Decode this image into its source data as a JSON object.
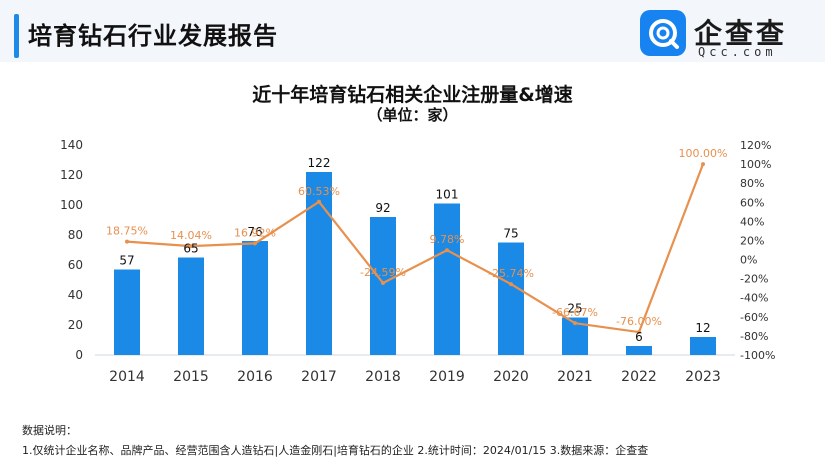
{
  "header": {
    "title": "培育钻石行业发展报告"
  },
  "logo": {
    "name": "企查查",
    "domain": "Qcc.com",
    "brand_color": "#1683f0"
  },
  "chart_data": {
    "type": "bar+line",
    "title": "近十年培育钻石相关企业注册量&增速",
    "subtitle": "（单位：家）",
    "categories": [
      "2014",
      "2015",
      "2016",
      "2017",
      "2018",
      "2019",
      "2020",
      "2021",
      "2022",
      "2023"
    ],
    "series": [
      {
        "name": "注册量",
        "type": "bar",
        "axis": "left",
        "color": "#1a8ae6",
        "values": [
          57,
          65,
          76,
          122,
          92,
          101,
          75,
          25,
          6,
          12
        ],
        "labels": [
          "57",
          "65",
          "76",
          "122",
          "92",
          "101",
          "75",
          "25",
          "6",
          "12"
        ]
      },
      {
        "name": "增速",
        "type": "line",
        "axis": "right",
        "color": "#e8904d",
        "values": [
          18.75,
          14.04,
          16.92,
          60.53,
          -24.59,
          9.78,
          -25.74,
          -66.67,
          -76.0,
          100.0
        ],
        "labels": [
          "18.75%",
          "14.04%",
          "16.92%",
          "60.53%",
          "-24.59%",
          "9.78%",
          "-25.74%",
          "-66.67%",
          "-76.00%",
          "100.00%"
        ]
      }
    ],
    "left_axis": {
      "min": 0,
      "max": 140,
      "ticks": [
        "0",
        "20",
        "40",
        "60",
        "80",
        "100",
        "120",
        "140"
      ]
    },
    "right_axis": {
      "min": -100,
      "max": 120,
      "ticks": [
        "-100%",
        "-80%",
        "-60%",
        "-40%",
        "-20%",
        "0%",
        "20%",
        "40%",
        "60%",
        "80%",
        "100%",
        "120%"
      ]
    }
  },
  "notes": {
    "heading": "数据说明：",
    "line1": "1.仅统计企业名称、品牌产品、经营范围含人造钻石|人造金刚石|培育钻石的企业    2.统计时间：2024/01/15    3.数据来源：企查查"
  }
}
